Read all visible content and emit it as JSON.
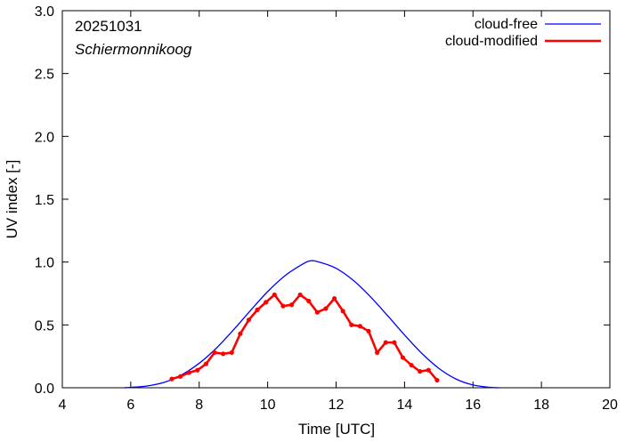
{
  "chart_data": {
    "type": "line",
    "title": "",
    "annotations": {
      "date": "20251031",
      "location": "Schiermonnikoog"
    },
    "xlabel": "Time  [UTC]",
    "ylabel": "UV index  [-]",
    "xlim": [
      4,
      20
    ],
    "ylim": [
      0.0,
      3.0
    ],
    "xticks": [
      "4",
      "6",
      "8",
      "10",
      "12",
      "14",
      "16",
      "18",
      "20"
    ],
    "yticks": [
      "0.0",
      "0.5",
      "1.0",
      "1.5",
      "2.0",
      "2.5",
      "3.0"
    ],
    "legend_position": "top-right",
    "series": [
      {
        "name": "cloud-free",
        "color": "#0000ff",
        "x": [
          5.8,
          6.0,
          6.5,
          7.0,
          7.5,
          8.0,
          8.5,
          9.0,
          9.5,
          10.0,
          10.5,
          11.0,
          11.25,
          11.5,
          12.0,
          12.5,
          13.0,
          13.5,
          14.0,
          14.5,
          15.0,
          15.5,
          16.0,
          16.5,
          16.8
        ],
        "y": [
          0.0,
          0.003,
          0.015,
          0.045,
          0.105,
          0.195,
          0.315,
          0.46,
          0.615,
          0.765,
          0.89,
          0.98,
          1.01,
          1.0,
          0.95,
          0.855,
          0.725,
          0.575,
          0.42,
          0.275,
          0.155,
          0.07,
          0.022,
          0.003,
          0.0
        ]
      },
      {
        "name": "cloud-modified",
        "color": "#ff0000",
        "x": [
          7.2,
          7.45,
          7.7,
          7.95,
          8.2,
          8.45,
          8.7,
          8.95,
          9.2,
          9.45,
          9.7,
          9.95,
          10.2,
          10.45,
          10.7,
          10.95,
          11.2,
          11.45,
          11.7,
          11.95,
          12.2,
          12.45,
          12.7,
          12.95,
          13.2,
          13.45,
          13.7,
          13.95,
          14.2,
          14.45,
          14.7,
          14.95
        ],
        "y": [
          0.07,
          0.09,
          0.12,
          0.14,
          0.19,
          0.28,
          0.27,
          0.28,
          0.43,
          0.54,
          0.62,
          0.68,
          0.74,
          0.65,
          0.66,
          0.74,
          0.69,
          0.6,
          0.63,
          0.71,
          0.61,
          0.5,
          0.49,
          0.45,
          0.28,
          0.36,
          0.36,
          0.24,
          0.18,
          0.13,
          0.14,
          0.06
        ]
      }
    ]
  }
}
